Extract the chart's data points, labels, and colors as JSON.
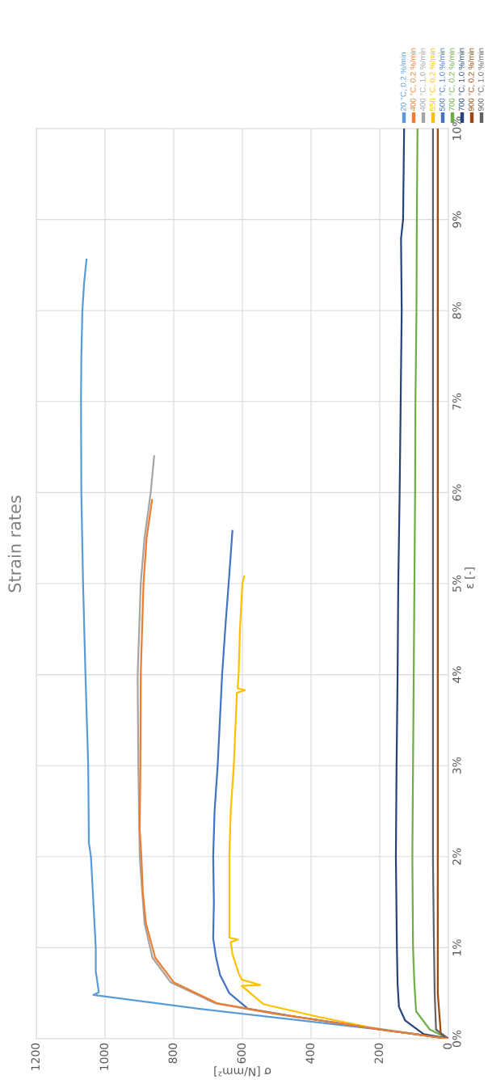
{
  "chart_data": {
    "type": "line",
    "title": "Strain rates",
    "xlabel": "σ [N/mm²]",
    "ylabel": "ε [-]",
    "xlim": [
      1200,
      0
    ],
    "xticks": [
      0,
      200,
      400,
      600,
      800,
      1000,
      1200
    ],
    "ylim": [
      0,
      10
    ],
    "yticks": [
      {
        "value": 0,
        "label": "0%"
      },
      {
        "value": 1,
        "label": "1%"
      },
      {
        "value": 2,
        "label": "2%"
      },
      {
        "value": 3,
        "label": "3%"
      },
      {
        "value": 4,
        "label": "4%"
      },
      {
        "value": 5,
        "label": "5%"
      },
      {
        "value": 6,
        "label": "6%"
      },
      {
        "value": 7,
        "label": "7%"
      },
      {
        "value": 8,
        "label": "8%"
      },
      {
        "value": 9,
        "label": "9%"
      },
      {
        "value": 10,
        "label": "10%"
      }
    ],
    "grid": true,
    "legend": "right",
    "marker": "none",
    "line_style": "solid",
    "series": [
      {
        "name": "20 °C, 0.2 %/min",
        "color": "#5b9bd5",
        "x": [
          0,
          198,
          728,
          1034,
          1018,
          1027,
          1027,
          1041,
          1047,
          1049,
          1057,
          1064,
          1069,
          1070,
          1069,
          1066,
          1061,
          1054
        ],
        "values": [
          0,
          0.1,
          0.33,
          0.48,
          0.51,
          0.74,
          1,
          2,
          2.15,
          3,
          4,
          5,
          6,
          7,
          7.5,
          8,
          8.3,
          8.56
        ]
      },
      {
        "name": "400 °C, 0.2 %/min",
        "color": "#ed7d31",
        "x": [
          0,
          198,
          494,
          674,
          800,
          854,
          881,
          890,
          894,
          899,
          897,
          896,
          888,
          879,
          863
        ],
        "values": [
          0,
          0.1,
          0.27,
          0.39,
          0.62,
          0.89,
          1.27,
          1.61,
          1.99,
          2.3,
          3,
          4,
          5,
          5.5,
          5.92
        ]
      },
      {
        "name": "400 °C, 1.0 %/min",
        "color": "#a5a5a5",
        "x": [
          0,
          500,
          680,
          809,
          862,
          885,
          899,
          903,
          905,
          896,
          885,
          867,
          857
        ],
        "values": [
          0,
          0.27,
          0.39,
          0.62,
          0.89,
          1.27,
          2,
          3,
          4,
          5,
          5.5,
          6,
          6.4
        ]
      },
      {
        "name": "550 °C, 0.2 %/min",
        "color": "#ffc000",
        "x": [
          0,
          198,
          378,
          539,
          602,
          548,
          602,
          611,
          629,
          634,
          613,
          638,
          638,
          634,
          625,
          616,
          593,
          614,
          611,
          607,
          600,
          595
        ],
        "values": [
          0,
          0.1,
          0.24,
          0.38,
          0.58,
          0.59,
          0.65,
          0.72,
          0.93,
          1.06,
          1.09,
          1.11,
          2,
          2.5,
          3,
          3.8,
          3.83,
          3.85,
          4,
          4.5,
          5,
          5.08
        ]
      },
      {
        "name": "500 °C, 1.0 %/min",
        "color": "#4472c4",
        "x": [
          0,
          198,
          441,
          584,
          638,
          665,
          677,
          685,
          683,
          685,
          681,
          672,
          659,
          650,
          640,
          629
        ],
        "values": [
          0,
          0.1,
          0.24,
          0.33,
          0.5,
          0.7,
          0.9,
          1.1,
          1.5,
          2,
          2.5,
          3,
          4,
          4.5,
          5,
          5.58
        ]
      },
      {
        "name": "700 °C, 0.2 %/min",
        "color": "#70ad47",
        "x": [
          0,
          54,
          94,
          99,
          103,
          105,
          103,
          101,
          99,
          97,
          96,
          93,
          92,
          90
        ],
        "values": [
          0,
          0.1,
          0.3,
          0.6,
          1,
          2,
          3,
          4,
          5,
          6,
          7,
          8,
          9,
          10
        ]
      },
      {
        "name": "700 °C, 1.0 %/min",
        "color": "#264478",
        "x": [
          0,
          72,
          126,
          144,
          148,
          150,
          153,
          151,
          148,
          146,
          142,
          139,
          136,
          138,
          132,
          129
        ],
        "values": [
          0,
          0.05,
          0.2,
          0.35,
          0.6,
          1,
          2,
          3,
          4,
          5,
          6,
          7,
          8,
          8.79,
          9,
          10
        ]
      },
      {
        "name": "900 °C, 0.2 %/min",
        "color": "#9e480e",
        "x": [
          0,
          22,
          31,
          31,
          31,
          31,
          31,
          31,
          31,
          31,
          31,
          31,
          31
        ],
        "values": [
          0,
          0.05,
          0.5,
          1,
          2,
          3,
          4,
          5,
          6,
          7,
          8,
          9,
          10
        ]
      },
      {
        "name": "900 °C, 1.0 %/min",
        "color": "#636363",
        "x": [
          0,
          36,
          40,
          42,
          45,
          45,
          45,
          45,
          45,
          45,
          45,
          45,
          45
        ],
        "values": [
          0,
          0.1,
          0.5,
          1,
          2,
          3,
          4,
          5,
          6,
          7,
          8,
          9,
          10
        ]
      }
    ]
  }
}
